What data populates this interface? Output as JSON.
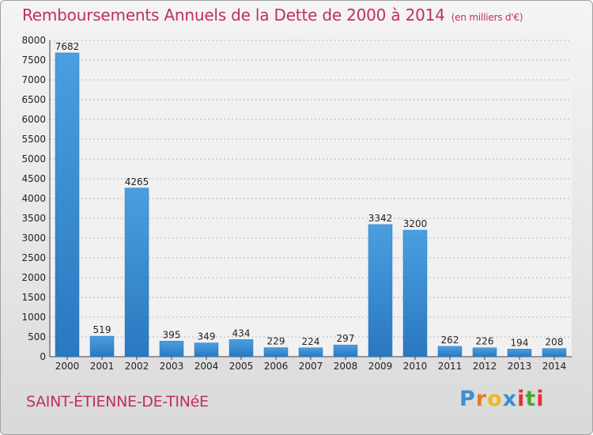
{
  "header": {
    "title": "Remboursements Annuels de la Dette de 2000 à 2014",
    "subtitle": "(en milliers d'€)"
  },
  "footer": {
    "place": "SAINT-ÉTIENNE-DE-TINéE",
    "logo_letters": [
      "P",
      "r",
      "o",
      "x",
      "i",
      "t",
      "i"
    ],
    "logo_colors": [
      "#3b8fd6",
      "#e87b1e",
      "#f0b81c",
      "#3b8fd6",
      "#e0323c",
      "#4aa832",
      "#e0323c"
    ]
  },
  "chart_data": {
    "type": "bar",
    "categories": [
      "2000",
      "2001",
      "2002",
      "2003",
      "2004",
      "2005",
      "2006",
      "2007",
      "2008",
      "2009",
      "2010",
      "2011",
      "2012",
      "2013",
      "2014"
    ],
    "values": [
      7682,
      519,
      4265,
      395,
      349,
      434,
      229,
      224,
      297,
      3342,
      3200,
      262,
      226,
      194,
      208
    ],
    "ylim": [
      0,
      8000
    ],
    "yticks": [
      0,
      500,
      1000,
      1500,
      2000,
      2500,
      3000,
      3500,
      4000,
      4500,
      5000,
      5500,
      6000,
      6500,
      7000,
      7500,
      8000
    ],
    "grid": true,
    "bar_color": "#4a9fe0",
    "bar_color_dark": "#2a78c0"
  }
}
